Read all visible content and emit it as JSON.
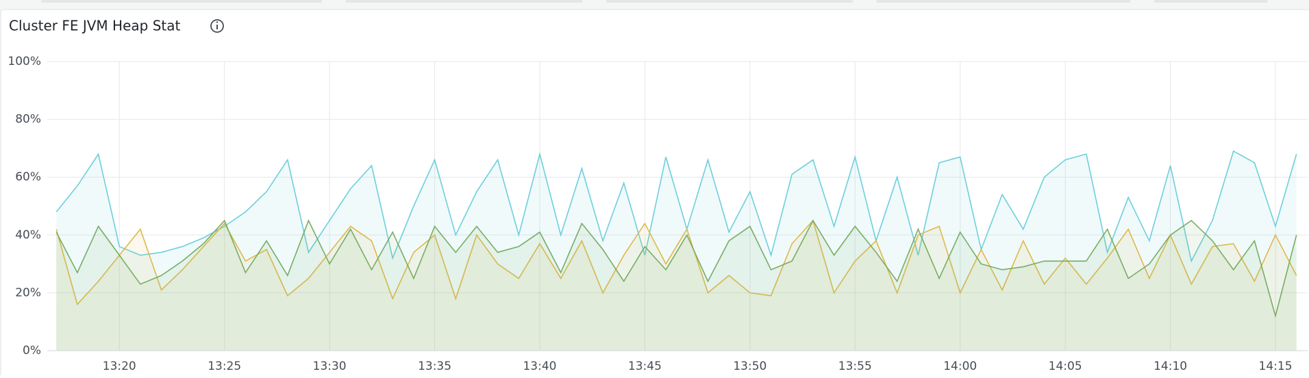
{
  "chart_data": {
    "type": "area-line",
    "title": "Cluster FE JVM Heap Stat",
    "xlim": [
      16.57,
      76.53
    ],
    "xticks": [
      {
        "value": 20,
        "label": "13:20"
      },
      {
        "value": 25,
        "label": "13:25"
      },
      {
        "value": 30,
        "label": "13:30"
      },
      {
        "value": 35,
        "label": "13:35"
      },
      {
        "value": 40,
        "label": "13:40"
      },
      {
        "value": 45,
        "label": "13:45"
      },
      {
        "value": 50,
        "label": "13:50"
      },
      {
        "value": 55,
        "label": "13:55"
      },
      {
        "value": 60,
        "label": "14:00"
      },
      {
        "value": 65,
        "label": "14:05"
      },
      {
        "value": 70,
        "label": "14:10"
      },
      {
        "value": 75,
        "label": "14:15"
      }
    ],
    "ylim": [
      0,
      100
    ],
    "yticks": [
      {
        "value": 0,
        "label": "0%"
      },
      {
        "value": 20,
        "label": "20%"
      },
      {
        "value": 40,
        "label": "40%"
      },
      {
        "value": 60,
        "label": "60%"
      },
      {
        "value": 80,
        "label": "80%"
      },
      {
        "value": 100,
        "label": "100%"
      }
    ],
    "grid": true,
    "x": [
      17,
      18,
      19,
      20,
      21,
      22,
      23,
      24,
      25,
      26,
      27,
      28,
      29,
      30,
      31,
      32,
      33,
      34,
      35,
      36,
      37,
      38,
      39,
      40,
      41,
      42,
      43,
      44,
      45,
      46,
      47,
      48,
      49,
      50,
      51,
      52,
      53,
      54,
      55,
      56,
      57,
      58,
      59,
      60,
      61,
      62,
      63,
      64,
      65,
      66,
      67,
      68,
      69,
      70,
      71,
      72,
      73,
      74,
      75,
      76
    ],
    "series": [
      {
        "color": "#6ccfdc",
        "values": [
          48,
          57,
          68,
          36,
          33,
          34,
          36,
          39,
          43,
          48,
          55,
          66,
          34,
          45,
          56,
          64,
          32,
          50,
          66,
          40,
          55,
          66,
          40,
          68,
          40,
          63,
          38,
          58,
          33,
          67,
          42,
          66,
          41,
          55,
          33,
          61,
          66,
          43,
          67,
          38,
          60,
          33,
          65,
          67,
          35,
          54,
          42,
          60,
          66,
          68,
          34,
          53,
          38,
          64,
          31,
          45,
          69,
          65,
          43,
          68
        ]
      },
      {
        "color": "#e0b84a",
        "values": [
          42,
          16,
          24,
          33,
          42,
          21,
          28,
          36,
          44,
          31,
          35,
          19,
          25,
          34,
          43,
          38,
          18,
          34,
          40,
          18,
          40,
          30,
          25,
          37,
          25,
          38,
          20,
          33,
          44,
          30,
          42,
          20,
          26,
          20,
          19,
          37,
          45,
          20,
          31,
          38,
          20,
          40,
          43,
          20,
          35,
          21,
          38,
          23,
          32,
          23,
          32,
          42,
          25,
          40,
          23,
          36,
          37,
          24,
          40,
          26
        ]
      },
      {
        "color": "#78ad63",
        "values": [
          41,
          27,
          43,
          33,
          23,
          26,
          31,
          37,
          45,
          27,
          38,
          26,
          45,
          30,
          42,
          28,
          41,
          25,
          43,
          34,
          43,
          34,
          36,
          41,
          27,
          44,
          35,
          24,
          36,
          28,
          40,
          24,
          38,
          43,
          28,
          31,
          45,
          33,
          43,
          34,
          24,
          42,
          25,
          41,
          30,
          28,
          29,
          31,
          31,
          31,
          42,
          25,
          30,
          40,
          45,
          38,
          28,
          38,
          12,
          40
        ]
      }
    ]
  }
}
